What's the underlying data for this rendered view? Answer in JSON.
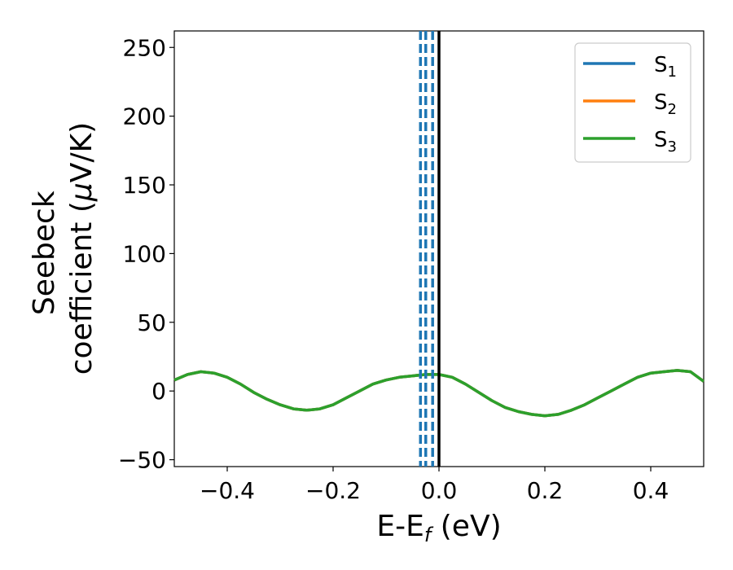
{
  "chart_data": {
    "type": "line",
    "xlabel": {
      "main": "E-E",
      "sub": "f",
      "tail": " (eV)"
    },
    "ylabel": {
      "line1": "Seebeck",
      "line2_pre": "coefficient  (",
      "line2_mu": "μ",
      "line2_post": "V/K)"
    },
    "xlim": [
      -0.5,
      0.5
    ],
    "ylim": [
      -55,
      262
    ],
    "xticks": [
      -0.4,
      -0.2,
      0.0,
      0.2,
      0.4
    ],
    "xtick_labels": [
      "−0.4",
      "−0.2",
      "0.0",
      "0.2",
      "0.4"
    ],
    "yticks": [
      -50,
      0,
      50,
      100,
      150,
      200,
      250
    ],
    "ytick_labels": [
      "−50",
      "0",
      "50",
      "100",
      "150",
      "200",
      "250"
    ],
    "grid": false,
    "legend_position": "top-right",
    "x": [
      -0.5,
      -0.475,
      -0.45,
      -0.425,
      -0.4,
      -0.375,
      -0.35,
      -0.325,
      -0.3,
      -0.275,
      -0.25,
      -0.225,
      -0.2,
      -0.175,
      -0.15,
      -0.125,
      -0.1,
      -0.075,
      -0.05,
      -0.025,
      0.0,
      0.025,
      0.05,
      0.075,
      0.1,
      0.125,
      0.15,
      0.175,
      0.2,
      0.225,
      0.25,
      0.275,
      0.3,
      0.325,
      0.35,
      0.375,
      0.4,
      0.425,
      0.45,
      0.475,
      0.5
    ],
    "series": [
      {
        "name": "S",
        "sub": "1",
        "color": "#1f77b4",
        "values": [
          8,
          12,
          14,
          13,
          10,
          5,
          -1,
          -6,
          -10,
          -13,
          -14,
          -13,
          -10,
          -5,
          0,
          5,
          8,
          10,
          11,
          12,
          12,
          10,
          5,
          -1,
          -7,
          -12,
          -15,
          -17,
          -18,
          -17,
          -14,
          -10,
          -5,
          0,
          5,
          10,
          13,
          14,
          15,
          14,
          7
        ]
      },
      {
        "name": "S",
        "sub": "2",
        "color": "#ff7f0e",
        "values": [
          8,
          12,
          14,
          13,
          10,
          5,
          -1,
          -6,
          -10,
          -13,
          -14,
          -13,
          -10,
          -5,
          0,
          5,
          8,
          10,
          11,
          12,
          12,
          10,
          5,
          -1,
          -7,
          -12,
          -15,
          -17,
          -18,
          -17,
          -14,
          -10,
          -5,
          0,
          5,
          10,
          13,
          14,
          15,
          14,
          7
        ]
      },
      {
        "name": "S",
        "sub": "3",
        "color": "#2ca02c",
        "values": [
          8,
          12,
          14,
          13,
          10,
          5,
          -1,
          -6,
          -10,
          -13,
          -14,
          -13,
          -10,
          -5,
          0,
          5,
          8,
          10,
          11,
          12,
          12,
          10,
          5,
          -1,
          -7,
          -12,
          -15,
          -17,
          -18,
          -17,
          -14,
          -10,
          -5,
          0,
          5,
          10,
          13,
          14,
          15,
          14,
          7
        ]
      }
    ],
    "vlines": [
      {
        "x": -0.035,
        "style": "dashed",
        "color": "#1f77b4"
      },
      {
        "x": -0.025,
        "style": "dashed",
        "color": "#1f77b4"
      },
      {
        "x": -0.012,
        "style": "dashed",
        "color": "#1f77b4"
      },
      {
        "x": 0.0,
        "style": "solid",
        "color": "#000000"
      }
    ]
  }
}
